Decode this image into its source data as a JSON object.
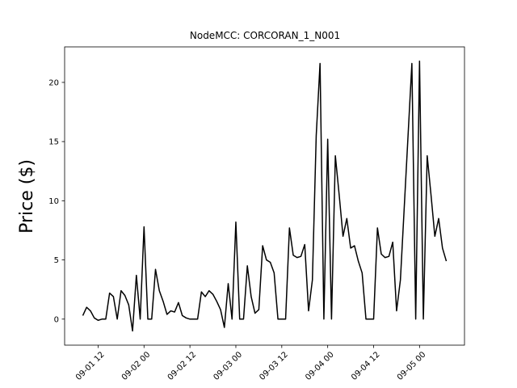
{
  "chart_data": {
    "type": "line",
    "title": "NodeMCC: CORCORAN_1_N001",
    "y_label": "Price ($)",
    "x": [
      "09-01 08",
      "09-01 09",
      "09-01 10",
      "09-01 11",
      "09-01 12",
      "09-01 13",
      "09-01 14",
      "09-01 15",
      "09-01 16",
      "09-01 17",
      "09-01 18",
      "09-01 19",
      "09-01 20",
      "09-01 21",
      "09-01 22",
      "09-01 23",
      "09-02 00",
      "09-02 01",
      "09-02 02",
      "09-02 03",
      "09-02 04",
      "09-02 05",
      "09-02 06",
      "09-02 07",
      "09-02 08",
      "09-02 09",
      "09-02 10",
      "09-02 11",
      "09-02 12",
      "09-02 13",
      "09-02 14",
      "09-02 15",
      "09-02 16",
      "09-02 17",
      "09-02 18",
      "09-02 19",
      "09-02 20",
      "09-02 21",
      "09-02 22",
      "09-02 23",
      "09-03 00",
      "09-03 01",
      "09-03 02",
      "09-03 03",
      "09-03 04",
      "09-03 05",
      "09-03 06",
      "09-03 07",
      "09-03 08",
      "09-03 09",
      "09-03 10",
      "09-03 11",
      "09-03 12",
      "09-03 13",
      "09-03 14",
      "09-03 15",
      "09-03 16",
      "09-03 17",
      "09-03 18",
      "09-03 19",
      "09-03 20",
      "09-03 21",
      "09-03 22",
      "09-03 23",
      "09-04 00",
      "09-04 01",
      "09-04 02",
      "09-04 03",
      "09-04 04",
      "09-04 05",
      "09-04 06",
      "09-04 07",
      "09-04 08",
      "09-04 09",
      "09-04 10",
      "09-04 11",
      "09-04 12",
      "09-04 13",
      "09-04 14",
      "09-04 15",
      "09-04 16",
      "09-04 17",
      "09-04 18",
      "09-04 19",
      "09-04 20",
      "09-04 21",
      "09-04 22",
      "09-04 23",
      "09-05 00",
      "09-05 01",
      "09-05 02",
      "09-05 03",
      "09-05 04",
      "09-05 05",
      "09-05 06",
      "09-05 07"
    ],
    "series": [
      {
        "color": "#000000",
        "values": [
          0.3,
          1.0,
          0.7,
          0.1,
          -0.1,
          0,
          0,
          2.2,
          1.9,
          0,
          2.4,
          2.0,
          1.2,
          -1.0,
          3.7,
          0,
          7.8,
          0,
          0,
          4.2,
          2.4,
          1.5,
          0.4,
          0.7,
          0.6,
          1.4,
          0.3,
          0.1,
          0,
          0,
          0,
          2.3,
          1.9,
          2.4,
          2.1,
          1.5,
          0.8,
          -0.7,
          3.0,
          0,
          8.2,
          0,
          0,
          4.5,
          1.9,
          0.5,
          0.8,
          6.2,
          5.0,
          4.8,
          3.9,
          0,
          0,
          0,
          7.7,
          5.4,
          5.2,
          5.3,
          6.3,
          0.7,
          3.3,
          15.5,
          21.6,
          0,
          15.2,
          0,
          13.8,
          10.5,
          7.0,
          8.5,
          6.0,
          6.2,
          4.9,
          3.9,
          0,
          0,
          0,
          7.7,
          5.5,
          5.2,
          5.3,
          6.5,
          0.7,
          3.3,
          9.4,
          15.5,
          21.6,
          0,
          21.8,
          0,
          13.8,
          10.5,
          7.0,
          8.5,
          6.0,
          4.9
        ]
      }
    ],
    "xticks": [
      "09-01 12",
      "09-02 00",
      "09-02 12",
      "09-03 00",
      "09-03 12",
      "09-04 00",
      "09-04 12",
      "09-05 00"
    ],
    "ylim": [
      -2.2,
      23
    ],
    "yticks": [
      0,
      5,
      10,
      15,
      20
    ]
  }
}
